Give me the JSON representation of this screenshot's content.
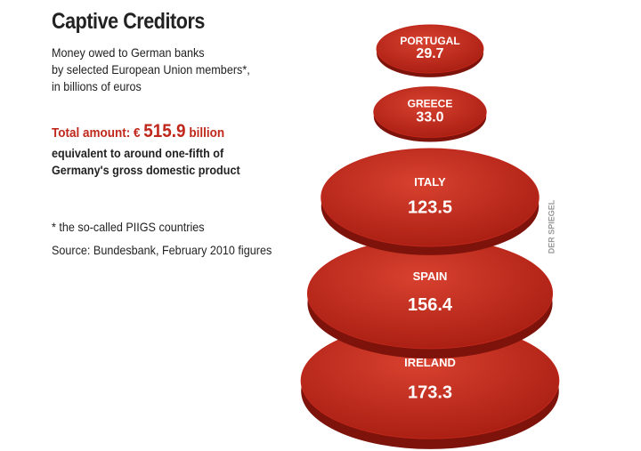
{
  "chart_data": {
    "type": "disc-stack",
    "title": "Captive Creditors",
    "subtitle": [
      "Money owed to German banks",
      "by selected European Union members*,",
      "in billions of euros"
    ],
    "total": {
      "prefix": "Total amount: €",
      "value": 515.9,
      "suffix": "billion",
      "note": [
        "equivalent to around one-fifth of",
        "Germany's gross domestic product"
      ]
    },
    "footnote": "* the so-called PIIGS countries",
    "source": "Source: Bundesbank, February 2010 figures",
    "credit": "DER SPIEGEL",
    "categories": [
      "PORTUGAL",
      "GREECE",
      "ITALY",
      "SPAIN",
      "IRELAND"
    ],
    "values": [
      29.7,
      33.0,
      123.5,
      156.4,
      173.3
    ],
    "value_labels": [
      "29.7",
      "33.0",
      "123.5",
      "156.4",
      "173.3"
    ],
    "color": "#c0271b"
  }
}
